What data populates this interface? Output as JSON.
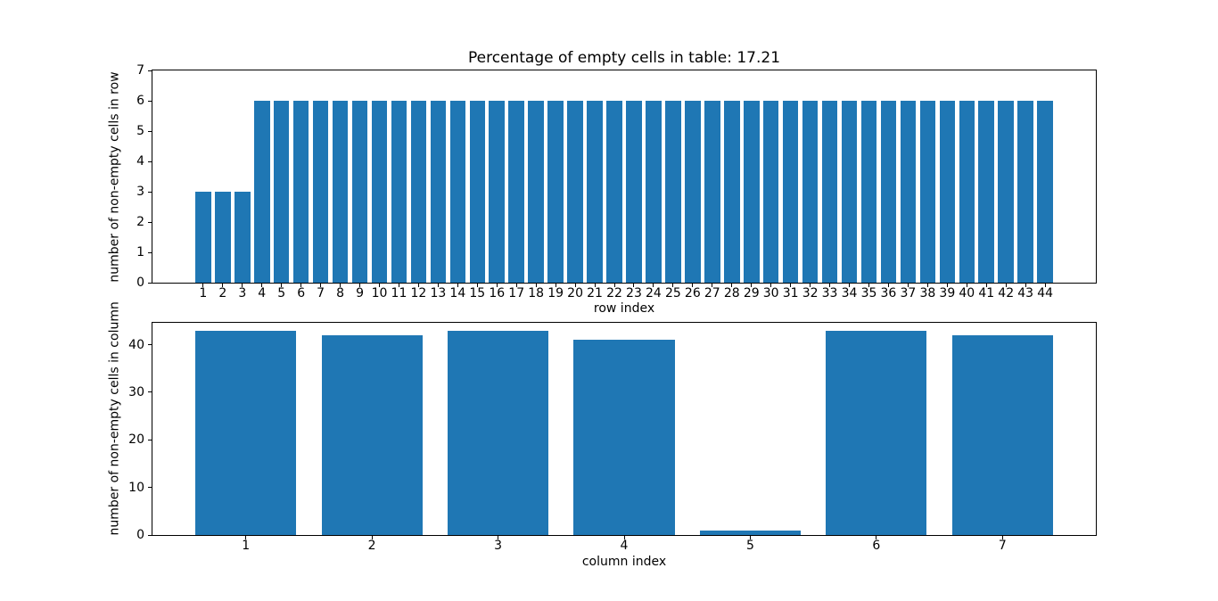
{
  "figure": {
    "background_color": "#ffffff",
    "bar_color": "#1f77b4",
    "axis_color": "#000000",
    "text_color": "#000000"
  },
  "chart_data": [
    {
      "type": "bar",
      "title": "Percentage of empty cells in table: 17.21",
      "xlabel": "row index",
      "ylabel": "number of non-empty cells in row",
      "categories": [
        "1",
        "2",
        "3",
        "4",
        "5",
        "6",
        "7",
        "8",
        "9",
        "10",
        "11",
        "12",
        "13",
        "14",
        "15",
        "16",
        "17",
        "18",
        "19",
        "20",
        "21",
        "22",
        "23",
        "24",
        "25",
        "26",
        "27",
        "28",
        "29",
        "30",
        "31",
        "32",
        "33",
        "34",
        "35",
        "36",
        "37",
        "38",
        "39",
        "40",
        "41",
        "42",
        "43",
        "44"
      ],
      "values": [
        3,
        3,
        3,
        6,
        6,
        6,
        6,
        6,
        6,
        6,
        6,
        6,
        6,
        6,
        6,
        6,
        6,
        6,
        6,
        6,
        6,
        6,
        6,
        6,
        6,
        6,
        6,
        6,
        6,
        6,
        6,
        6,
        6,
        6,
        6,
        6,
        6,
        6,
        6,
        6,
        6,
        6,
        6,
        6
      ],
      "ylim": [
        0,
        7
      ],
      "yticks": [
        0,
        1,
        2,
        3,
        4,
        5,
        6,
        7
      ],
      "bar_width_fraction": 0.8,
      "grid": false,
      "legend_position": "none"
    },
    {
      "type": "bar",
      "title": "",
      "xlabel": "column index",
      "ylabel": "number of non-empty cells in column",
      "categories": [
        "1",
        "2",
        "3",
        "4",
        "5",
        "6",
        "7"
      ],
      "values": [
        43,
        42,
        43,
        41,
        1,
        43,
        42
      ],
      "ylim": [
        0,
        44.6
      ],
      "yticks": [
        0,
        10,
        20,
        30,
        40
      ],
      "bar_width_fraction": 0.8,
      "grid": false,
      "legend_position": "none"
    }
  ]
}
